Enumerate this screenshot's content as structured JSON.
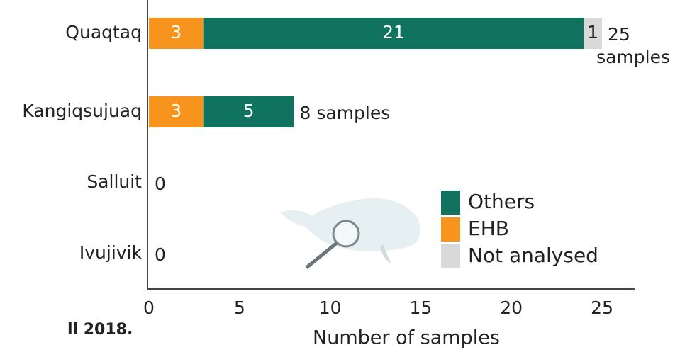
{
  "chart_data": {
    "type": "stacked-barh",
    "categories": [
      "Quaqtaq",
      "Kangiqsujuaq",
      "Salluit",
      "Ivujivik"
    ],
    "series": [
      {
        "name": "EHB",
        "color": "#f7941d",
        "text_color": "#ffffff",
        "values": [
          3,
          3,
          0,
          0
        ]
      },
      {
        "name": "Others",
        "color": "#0f7360",
        "text_color": "#ffffff",
        "values": [
          21,
          5,
          0,
          0
        ]
      },
      {
        "name": "Not analysed",
        "color": "#d9d9d9",
        "text_color": "#222222",
        "values": [
          1,
          0,
          0,
          0
        ]
      }
    ],
    "totals": [
      25,
      8,
      0,
      0
    ],
    "total_labels": [
      "25 samples",
      "8 samples",
      "0",
      "0"
    ],
    "legend_order": [
      1,
      0,
      2
    ],
    "xlim": [
      0,
      26.8
    ],
    "xticks": [
      0,
      5,
      10,
      15,
      20,
      25
    ],
    "xlabel": "Number of samples",
    "caption_fragment": "ll 2018."
  }
}
